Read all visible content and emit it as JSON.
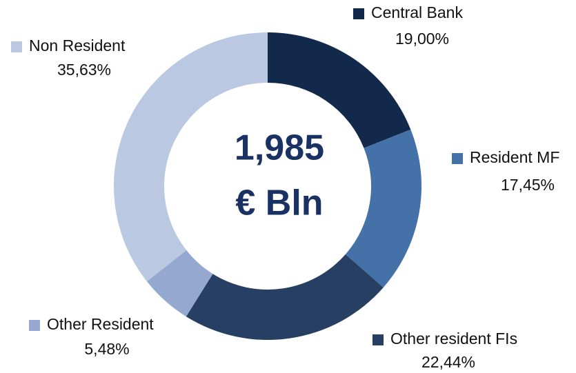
{
  "chart_data": {
    "type": "donut",
    "categories": [
      "Central Bank",
      "Resident MF",
      "Other resident FIs",
      "Other Resident",
      "Non Resident"
    ],
    "values": [
      19.0,
      17.45,
      22.44,
      5.48,
      35.63
    ],
    "value_labels": [
      "19,00%",
      "17,45%",
      "22,44%",
      "5,48%",
      "35,63%"
    ],
    "colors": [
      "#13294b",
      "#4472a8",
      "#263f63",
      "#95a9d0",
      "#bac8e2"
    ],
    "annotations": [
      "1,985",
      "€ Bln"
    ]
  }
}
